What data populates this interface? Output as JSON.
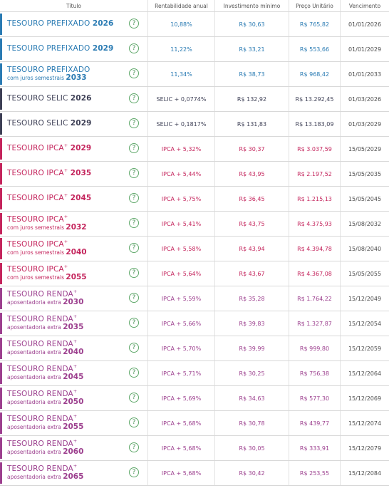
{
  "headers": {
    "titulo": "Título",
    "rentabilidade": "Rentabilidade anual",
    "investimento": "Investimento mínimo",
    "preco": "Preço Unitário",
    "vencimento": "Vencimento"
  },
  "help_icon_glyph": "?",
  "colors": {
    "prefixado": "#2a7bb3",
    "selic": "#3d3f55",
    "ipca": "#c4245c",
    "renda": "#9c3f8e",
    "help": "#5fa86a"
  },
  "rows": [
    {
      "group": "prefixado",
      "name": "TESOURO PREFIXADO",
      "sup": "",
      "sub": "",
      "year": "2026",
      "rent": "10,88%",
      "inv": "R$ 30,63",
      "price": "R$ 765,82",
      "venc": "01/01/2026"
    },
    {
      "group": "prefixado",
      "name": "TESOURO PREFIXADO",
      "sup": "",
      "sub": "",
      "year": "2029",
      "rent": "11,22%",
      "inv": "R$ 33,21",
      "price": "R$ 553,66",
      "venc": "01/01/2029"
    },
    {
      "group": "prefixado",
      "name": "TESOURO PREFIXADO",
      "sup": "",
      "sub": "com juros semestrais",
      "year": "2033",
      "rent": "11,34%",
      "inv": "R$ 38,73",
      "price": "R$ 968,42",
      "venc": "01/01/2033"
    },
    {
      "group": "selic",
      "name": "TESOURO SELIC",
      "sup": "",
      "sub": "",
      "year": "2026",
      "rent": "SELIC + 0,0774%",
      "inv": "R$ 132,92",
      "price": "R$ 13.292,45",
      "venc": "01/03/2026"
    },
    {
      "group": "selic",
      "name": "TESOURO SELIC",
      "sup": "",
      "sub": "",
      "year": "2029",
      "rent": "SELIC + 0,1817%",
      "inv": "R$ 131,83",
      "price": "R$ 13.183,09",
      "venc": "01/03/2029"
    },
    {
      "group": "ipca",
      "name": "TESOURO IPCA",
      "sup": "+",
      "sub": "",
      "year": "2029",
      "rent": "IPCA + 5,32%",
      "inv": "R$ 30,37",
      "price": "R$ 3.037,59",
      "venc": "15/05/2029"
    },
    {
      "group": "ipca",
      "name": "TESOURO IPCA",
      "sup": "+",
      "sub": "",
      "year": "2035",
      "rent": "IPCA + 5,44%",
      "inv": "R$ 43,95",
      "price": "R$ 2.197,52",
      "venc": "15/05/2035"
    },
    {
      "group": "ipca",
      "name": "TESOURO IPCA",
      "sup": "+",
      "sub": "",
      "year": "2045",
      "rent": "IPCA + 5,75%",
      "inv": "R$ 36,45",
      "price": "R$ 1.215,13",
      "venc": "15/05/2045"
    },
    {
      "group": "ipca",
      "name": "TESOURO IPCA",
      "sup": "+",
      "sub": "com juros semestrais",
      "year": "2032",
      "rent": "IPCA + 5,41%",
      "inv": "R$ 43,75",
      "price": "R$ 4.375,93",
      "venc": "15/08/2032"
    },
    {
      "group": "ipca",
      "name": "TESOURO IPCA",
      "sup": "+",
      "sub": "com juros semestrais",
      "year": "2040",
      "rent": "IPCA + 5,58%",
      "inv": "R$ 43,94",
      "price": "R$ 4.394,78",
      "venc": "15/08/2040"
    },
    {
      "group": "ipca",
      "name": "TESOURO IPCA",
      "sup": "+",
      "sub": "com juros semestrais",
      "year": "2055",
      "rent": "IPCA + 5,64%",
      "inv": "R$ 43,67",
      "price": "R$ 4.367,08",
      "venc": "15/05/2055"
    },
    {
      "group": "renda",
      "name": "TESOURO RENDA",
      "sup": "+",
      "sub": "aposentadoria extra",
      "year": "2030",
      "rent": "IPCA + 5,59%",
      "inv": "R$ 35,28",
      "price": "R$ 1.764,22",
      "venc": "15/12/2049"
    },
    {
      "group": "renda",
      "name": "TESOURO RENDA",
      "sup": "+",
      "sub": "aposentadoria extra",
      "year": "2035",
      "rent": "IPCA + 5,66%",
      "inv": "R$ 39,83",
      "price": "R$ 1.327,87",
      "venc": "15/12/2054"
    },
    {
      "group": "renda",
      "name": "TESOURO RENDA",
      "sup": "+",
      "sub": "aposentadoria extra",
      "year": "2040",
      "rent": "IPCA + 5,70%",
      "inv": "R$ 39,99",
      "price": "R$ 999,80",
      "venc": "15/12/2059"
    },
    {
      "group": "renda",
      "name": "TESOURO RENDA",
      "sup": "+",
      "sub": "aposentadoria extra",
      "year": "2045",
      "rent": "IPCA + 5,71%",
      "inv": "R$ 30,25",
      "price": "R$ 756,38",
      "venc": "15/12/2064"
    },
    {
      "group": "renda",
      "name": "TESOURO RENDA",
      "sup": "+",
      "sub": "aposentadoria extra",
      "year": "2050",
      "rent": "IPCA + 5,69%",
      "inv": "R$ 34,63",
      "price": "R$ 577,30",
      "venc": "15/12/2069"
    },
    {
      "group": "renda",
      "name": "TESOURO RENDA",
      "sup": "+",
      "sub": "aposentadoria extra",
      "year": "2055",
      "rent": "IPCA + 5,68%",
      "inv": "R$ 30,78",
      "price": "R$ 439,77",
      "venc": "15/12/2074"
    },
    {
      "group": "renda",
      "name": "TESOURO RENDA",
      "sup": "+",
      "sub": "aposentadoria extra",
      "year": "2060",
      "rent": "IPCA + 5,68%",
      "inv": "R$ 30,05",
      "price": "R$ 333,91",
      "venc": "15/12/2079"
    },
    {
      "group": "renda",
      "name": "TESOURO RENDA",
      "sup": "+",
      "sub": "aposentadoria extra",
      "year": "2065",
      "rent": "IPCA + 5,68%",
      "inv": "R$ 30,42",
      "price": "R$ 253,55",
      "venc": "15/12/2084"
    }
  ]
}
